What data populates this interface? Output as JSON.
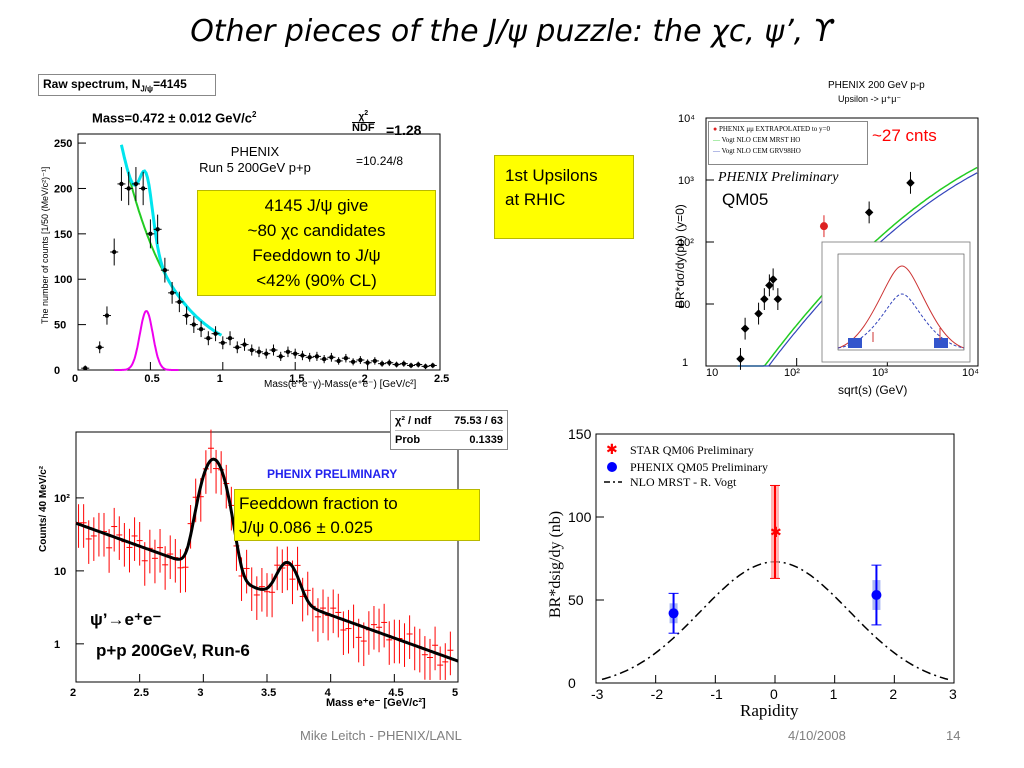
{
  "slide": {
    "title": "Other pieces of the J/ψ puzzle: the χc, ψ’, ϒ",
    "footer_author": "Mike Leitch - PHENIX/LANL",
    "footer_date": "4/10/2008",
    "page_number": "14"
  },
  "panels": {
    "chic": {
      "header": "Raw spectrum, N",
      "header_sub": "J/ψ",
      "header_val": "=4145",
      "mass_label": "Mass=0.472 ± 0.012 GeV/c",
      "chi2": "χ",
      "ndf_label": "NDF",
      "chi2_val": "=1.28",
      "chi2_ratio": "=10.24/8",
      "phenix_line1": "PHENIX",
      "phenix_line2": "Run 5 200GeV p+p",
      "callout_line1": "4145 J/ψ give",
      "callout_line2": "~80 χc candidates",
      "callout_line3": "Feeddown to J/ψ",
      "callout_line4": "<42% (90% CL)",
      "ylabel": "The number of counts [1/50 (MeV/c²)⁻¹]",
      "xlabel": "Mass(e⁺e⁻γ)-Mass(e⁺e⁻) [GeV/c²]"
    },
    "upsilon_sqrt": {
      "title": "PHENIX 200 GeV p-p",
      "subtitle": "Upsilon -> μ⁺μ⁻",
      "legend": [
        "PHENIX μμ EXTRAPOLATED to y=0",
        "Vogt NLO CEM MRST HO",
        "Vogt NLO CEM GRV98HO"
      ],
      "prelim": "PHENIX Preliminary",
      "qm": "QM05",
      "counts_note": "~27 cnts",
      "ylabel": "BR*dσ/dy(pb) (y=0)",
      "xlabel": "sqrt(s) (GeV)",
      "callout_line1": "1st Upsilons",
      "callout_line2": "at RHIC"
    },
    "psiprime": {
      "chi2_label": "χ² / ndf",
      "chi2_val": "75.53 / 63",
      "prob_label": "Prob",
      "prob_val": "0.1339",
      "prelim": "PHENIX PRELIMINARY",
      "callout_line1": "Feeddown fraction to",
      "callout_line2": "J/ψ 0.086 ± 0.025",
      "decay": "ψ’→e⁺e⁻",
      "run": "p+p 200GeV, Run-6",
      "ylabel": "Counts/ 40 MeV/c²",
      "xlabel": "Mass e⁺e⁻ [GeV/c²]"
    },
    "rapidity": {
      "legend": [
        "STAR QM06 Preliminary",
        "PHENIX QM05 Preliminary",
        "NLO MRST - R. Vogt"
      ],
      "ylabel": "BR*dsig/dy (nb)",
      "xlabel": "Rapidity"
    }
  },
  "chart_data": [
    {
      "type": "scatter",
      "id": "chic",
      "xlim": [
        0,
        2.5
      ],
      "ylim": [
        0,
        260
      ],
      "xticks": [
        "0",
        "0.5",
        "1",
        "1.5",
        "2",
        "2.5"
      ],
      "yticks": [
        "0",
        "50",
        "100",
        "150",
        "200",
        "250"
      ],
      "x": [
        0.05,
        0.15,
        0.2,
        0.25,
        0.3,
        0.35,
        0.4,
        0.45,
        0.5,
        0.55,
        0.6,
        0.65,
        0.7,
        0.75,
        0.8,
        0.85,
        0.9,
        0.95,
        1.0,
        1.05,
        1.1,
        1.15,
        1.2,
        1.25,
        1.3,
        1.35,
        1.4,
        1.45,
        1.5,
        1.55,
        1.6,
        1.65,
        1.7,
        1.75,
        1.8,
        1.85,
        1.9,
        1.95,
        2.0,
        2.05,
        2.1,
        2.15,
        2.2,
        2.25,
        2.3,
        2.35,
        2.4,
        2.45
      ],
      "y": [
        2,
        25,
        60,
        130,
        205,
        200,
        205,
        200,
        150,
        155,
        110,
        85,
        75,
        60,
        50,
        45,
        35,
        40,
        30,
        35,
        25,
        28,
        22,
        20,
        18,
        22,
        15,
        20,
        18,
        16,
        14,
        15,
        12,
        14,
        10,
        13,
        9,
        11,
        8,
        10,
        7,
        8,
        6,
        7,
        5,
        6,
        4,
        5
      ],
      "colors": {
        "fit_total": "#00e5ee",
        "fit_background": "#22cc22",
        "signal": "#ee00ee",
        "points": "#000000"
      }
    },
    {
      "type": "scatter",
      "id": "upsilon_sqrt",
      "log_x": true,
      "log_y": true,
      "xlim": [
        10,
        10000
      ],
      "ylim": [
        1,
        10000
      ],
      "x": [
        24,
        27,
        38,
        44,
        50,
        55,
        62,
        200,
        630,
        1800
      ],
      "y": [
        1.3,
        4,
        7,
        12,
        20,
        25,
        12,
        180,
        300,
        900
      ],
      "colors": {
        "phenix": "#dd2222",
        "data": "#000000",
        "mrst": "#22cc22",
        "grv": "#3344bb"
      }
    },
    {
      "type": "line",
      "id": "psiprime",
      "log_y": true,
      "xlim": [
        2,
        5
      ],
      "ylim": [
        0.3,
        800
      ],
      "xticks": [
        "2",
        "2.5",
        "3",
        "3.5",
        "4",
        "4.5",
        "5"
      ],
      "yticks": [
        "1",
        "10",
        "10²"
      ],
      "colors": {
        "fit": "#000000",
        "data": "#ff0000"
      }
    },
    {
      "type": "scatter",
      "id": "rapidity",
      "xlim": [
        -3,
        3
      ],
      "ylim": [
        0,
        150
      ],
      "xticks": [
        "-3",
        "-2",
        "-1",
        "0",
        "1",
        "2",
        "3"
      ],
      "yticks": [
        "0",
        "50",
        "100",
        "150"
      ],
      "series": [
        {
          "name": "STAR QM06 Preliminary",
          "x": [
            0
          ],
          "y": [
            91
          ],
          "err": [
            28
          ]
        },
        {
          "name": "PHENIX QM05 Preliminary",
          "x": [
            -1.7,
            1.7
          ],
          "y": [
            42,
            53
          ],
          "err": [
            12,
            18
          ]
        }
      ],
      "colors": {
        "star": "#ff0000",
        "phenix": "#0000ff",
        "nlo": "#000000"
      }
    }
  ]
}
